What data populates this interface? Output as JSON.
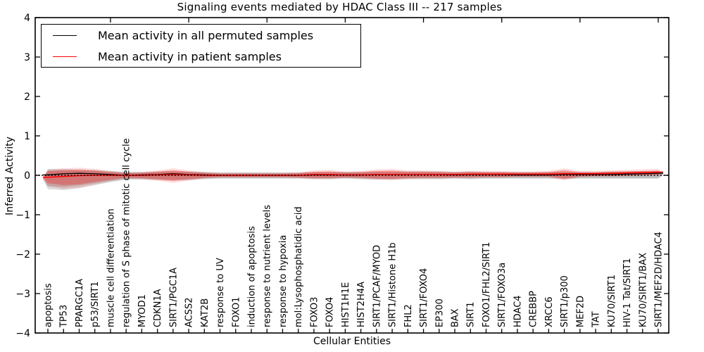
{
  "title": "Signaling events mediated by HDAC Class III -- 217 samples",
  "axes": {
    "x_label": "Cellular Entities",
    "y_label": "Inferred Activity"
  },
  "legend": {
    "items": [
      {
        "label": "Mean activity in all permuted samples",
        "color": "#000000"
      },
      {
        "label": "Mean activity in patient samples",
        "color": "#ff0000"
      }
    ]
  },
  "colors": {
    "frame": "#000000",
    "zero_line": "#000000",
    "permuted_line": "#000000",
    "patient_line": "#ff0000",
    "patient_band": "rgba(255,0,0,0.28)",
    "patient_band_halo": "rgba(255,0,0,0.13)",
    "permuted_band": "rgba(0,0,0,0.14)",
    "background": "#ffffff"
  },
  "chart_data": {
    "type": "area",
    "subtype": "violin-band-with-mean-lines",
    "title": "Signaling events mediated by HDAC Class III -- 217 samples",
    "xlabel": "Cellular Entities",
    "ylabel": "Inferred Activity",
    "ylim": [
      -4,
      4
    ],
    "ytick_values": [
      4,
      3,
      2,
      1,
      0,
      -1,
      -2,
      -3,
      -4
    ],
    "ytick_labels": [
      "4",
      "3",
      "2",
      "1",
      "0",
      "−1",
      "−2",
      "−3",
      "−4"
    ],
    "grid": false,
    "legend_position": "upper-left",
    "zero_reference_line": 0,
    "categories": [
      "apoptosis",
      "TP53",
      "PPARGC1A",
      "p53/SIRT1",
      "muscle cell differentiation",
      "regulation of S phase of mitotic cell cycle",
      "MYOD1",
      "CDKN1A",
      "SIRT1/PGC1A",
      "ACSS2",
      "KAT2B",
      "response to UV",
      "FOXO1",
      "induction of apoptosis",
      "response to nutrient levels",
      "response to hypoxia",
      "mol:Lysophosphatidic acid",
      "FOXO3",
      "FOXO4",
      "HIST1H1E",
      "HIST2H4A",
      "SIRT1/PCAF/MYOD",
      "SIRT1/Histone H1b",
      "FHL2",
      "SIRT1/FOXO4",
      "EP300",
      "BAX",
      "SIRT1",
      "FOXO1/FHL2/SIRT1",
      "SIRT1/FOXO3a",
      "HDAC4",
      "CREBBP",
      "XRCC6",
      "SIRT1/p300",
      "MEF2D",
      "TAT",
      "KU70/SIRT1",
      "HIV-1 Tat/SIRT1",
      "KU70/SIRT1/BAX",
      "SIRT1/MEF2D/HDAC4"
    ],
    "series": [
      {
        "name": "mean_permuted",
        "values": [
          0.01,
          0.04,
          0.05,
          0.04,
          0.02,
          0.0,
          0.01,
          0.02,
          0.04,
          0.02,
          0.01,
          0.0,
          0.0,
          0.0,
          0.0,
          0.0,
          0.0,
          0.01,
          0.01,
          0.01,
          0.01,
          0.02,
          0.02,
          0.02,
          0.02,
          0.02,
          0.01,
          0.02,
          0.02,
          0.02,
          0.01,
          0.01,
          0.01,
          0.02,
          0.02,
          0.02,
          0.02,
          0.03,
          0.04,
          0.05
        ]
      },
      {
        "name": "mean_patient",
        "values": [
          -0.05,
          -0.03,
          -0.01,
          0.0,
          0.0,
          0.0,
          0.0,
          0.01,
          0.02,
          0.01,
          0.0,
          0.0,
          0.0,
          0.0,
          0.0,
          0.0,
          0.0,
          0.02,
          0.02,
          0.01,
          0.01,
          0.02,
          0.02,
          0.02,
          0.02,
          0.02,
          0.02,
          0.03,
          0.03,
          0.03,
          0.03,
          0.03,
          0.03,
          0.04,
          0.04,
          0.04,
          0.05,
          0.06,
          0.07,
          0.08
        ]
      },
      {
        "name": "patient_band_upper",
        "values": [
          0.1,
          0.13,
          0.14,
          0.12,
          0.08,
          0.05,
          0.06,
          0.09,
          0.13,
          0.09,
          0.06,
          0.04,
          0.04,
          0.04,
          0.04,
          0.04,
          0.05,
          0.09,
          0.1,
          0.07,
          0.08,
          0.11,
          0.12,
          0.09,
          0.09,
          0.08,
          0.07,
          0.08,
          0.08,
          0.08,
          0.07,
          0.07,
          0.08,
          0.13,
          0.08,
          0.08,
          0.09,
          0.1,
          0.11,
          0.12
        ]
      },
      {
        "name": "patient_band_lower",
        "values": [
          -0.2,
          -0.25,
          -0.23,
          -0.17,
          -0.11,
          -0.06,
          -0.07,
          -0.1,
          -0.14,
          -0.1,
          -0.06,
          -0.04,
          -0.04,
          -0.04,
          -0.04,
          -0.04,
          -0.05,
          -0.07,
          -0.07,
          -0.05,
          -0.06,
          -0.08,
          -0.09,
          -0.07,
          -0.06,
          -0.06,
          -0.05,
          -0.05,
          -0.04,
          -0.04,
          -0.03,
          -0.03,
          -0.03,
          -0.09,
          -0.03,
          -0.02,
          -0.02,
          -0.01,
          0.0,
          0.01
        ]
      },
      {
        "name": "permuted_band_upper",
        "values": [
          0.13,
          0.13,
          0.12,
          0.11,
          0.09,
          0.07,
          0.07,
          0.08,
          0.09,
          0.08,
          0.07,
          0.06,
          0.06,
          0.06,
          0.06,
          0.06,
          0.06,
          0.07,
          0.07,
          0.07,
          0.07,
          0.08,
          0.08,
          0.08,
          0.08,
          0.08,
          0.07,
          0.08,
          0.07,
          0.07,
          0.07,
          0.07,
          0.07,
          0.08,
          0.07,
          0.07,
          0.08,
          0.08,
          0.09,
          0.09
        ]
      },
      {
        "name": "permuted_band_lower",
        "values": [
          -0.28,
          -0.3,
          -0.26,
          -0.2,
          -0.14,
          -0.09,
          -0.09,
          -0.1,
          -0.11,
          -0.1,
          -0.08,
          -0.07,
          -0.07,
          -0.07,
          -0.07,
          -0.07,
          -0.07,
          -0.08,
          -0.08,
          -0.07,
          -0.08,
          -0.09,
          -0.09,
          -0.08,
          -0.08,
          -0.08,
          -0.07,
          -0.08,
          -0.07,
          -0.07,
          -0.07,
          -0.07,
          -0.07,
          -0.08,
          -0.07,
          -0.07,
          -0.07,
          -0.07,
          -0.07,
          -0.07
        ]
      }
    ]
  }
}
